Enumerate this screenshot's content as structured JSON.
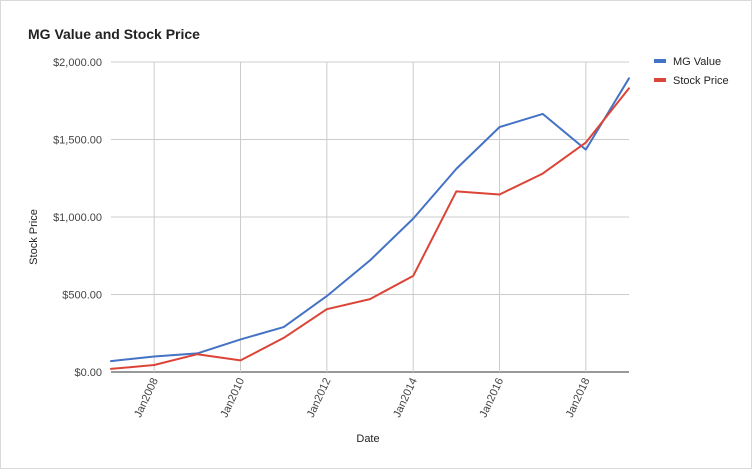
{
  "chart_data": {
    "type": "line",
    "title": "MG Value and Stock Price",
    "xlabel": "Date",
    "ylabel": "Stock Price",
    "x": [
      2007,
      2008,
      2009,
      2010,
      2011,
      2012,
      2013,
      2014,
      2015,
      2016,
      2017,
      2018,
      2019
    ],
    "xlim": [
      2007,
      2019
    ],
    "x_ticks": [
      {
        "value": 2008,
        "label": "Jan2008"
      },
      {
        "value": 2010,
        "label": "Jan2010"
      },
      {
        "value": 2012,
        "label": "Jan2012"
      },
      {
        "value": 2014,
        "label": "Jan2014"
      },
      {
        "value": 2016,
        "label": "Jan2016"
      },
      {
        "value": 2018,
        "label": "Jan2018"
      }
    ],
    "ylim": [
      0,
      2000
    ],
    "y_ticks": [
      {
        "value": 0,
        "label": "$0.00"
      },
      {
        "value": 500,
        "label": "$500.00"
      },
      {
        "value": 1000,
        "label": "$1,000.00"
      },
      {
        "value": 1500,
        "label": "$1,500.00"
      },
      {
        "value": 2000,
        "label": "$2,000.00"
      }
    ],
    "grid": true,
    "legend_position": "right",
    "series": [
      {
        "name": "MG Value",
        "color": "#4472c4",
        "values": [
          70,
          100,
          120,
          210,
          290,
          490,
          720,
          990,
          1310,
          1580,
          1665,
          1435,
          1895
        ]
      },
      {
        "name": "Stock Price",
        "color": "#db4437",
        "values": [
          20,
          45,
          115,
          75,
          220,
          405,
          470,
          620,
          1165,
          1145,
          1280,
          1480,
          1830
        ]
      }
    ]
  }
}
